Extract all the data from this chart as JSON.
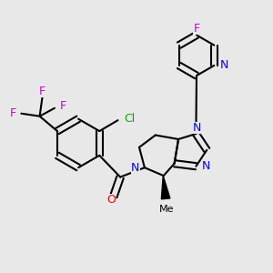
{
  "background_color": "#e8e8e8",
  "bond_color": "#000000",
  "bond_width": 1.5,
  "figsize": [
    3.0,
    3.0
  ],
  "dpi": 100,
  "atom_colors": {
    "F": "#cc00cc",
    "N": "#0000ee",
    "O": "#ee0000",
    "Cl": "#00aa00",
    "C": "#000000",
    "Me": "#000000"
  }
}
